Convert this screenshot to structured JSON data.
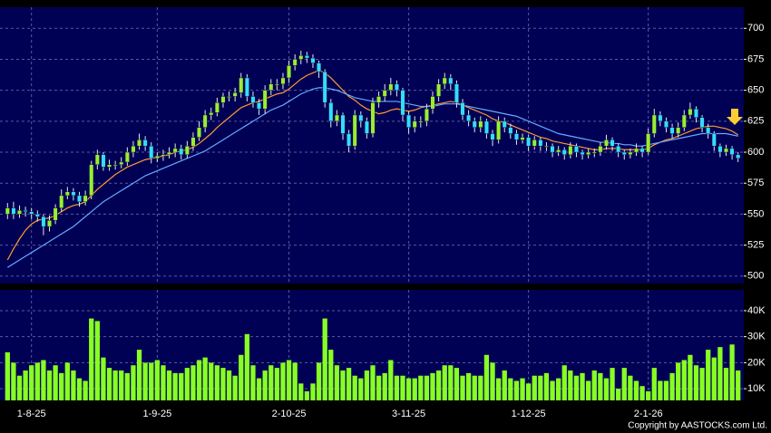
{
  "chart_data": [
    {
      "type": "candlestick",
      "xlim": [
        -0.5,
        122.5
      ],
      "ylim": [
        494,
        717
      ],
      "yticks": [
        500,
        525,
        550,
        575,
        600,
        625,
        650,
        675,
        700
      ],
      "grid": true,
      "up_color": "#99ee33",
      "down_color": "#33ddff",
      "wick_color": "#e8e8e8",
      "open": [
        550,
        555,
        550,
        553,
        552,
        550,
        548,
        540,
        545,
        555,
        565,
        568,
        565,
        560,
        565,
        590,
        598,
        588,
        590,
        590,
        592,
        600,
        605,
        610,
        605,
        595,
        597,
        598,
        600,
        603,
        598,
        605,
        612,
        620,
        630,
        632,
        640,
        645,
        645,
        648,
        660,
        645,
        640,
        635,
        650,
        655,
        655,
        660,
        670,
        675,
        678,
        676,
        672,
        665,
        640,
        625,
        630,
        615,
        605,
        630,
        625,
        615,
        640,
        645,
        650,
        655,
        650,
        630,
        620,
        625,
        625,
        635,
        645,
        655,
        660,
        655,
        640,
        630,
        625,
        620,
        625,
        615,
        610,
        625,
        620,
        615,
        610,
        612,
        605,
        610,
        605,
        605,
        600,
        602,
        598,
        605,
        600,
        598,
        600,
        600,
        605,
        610,
        605,
        600,
        598,
        600,
        603,
        600,
        615,
        630,
        625,
        620,
        615,
        620,
        630,
        635,
        628,
        620,
        615,
        605,
        600,
        603,
        598
      ],
      "high": [
        559,
        560,
        557,
        556,
        555,
        553,
        550,
        549,
        558,
        570,
        572,
        571,
        568,
        569,
        593,
        602,
        600,
        594,
        593,
        596,
        604,
        609,
        615,
        613,
        608,
        600,
        602,
        604,
        607,
        606,
        609,
        616,
        625,
        634,
        636,
        644,
        648,
        649,
        652,
        664,
        663,
        649,
        643,
        654,
        659,
        659,
        664,
        674,
        679,
        682,
        681,
        679,
        674,
        667,
        643,
        634,
        632,
        618,
        634,
        633,
        628,
        644,
        649,
        655,
        660,
        658,
        652,
        633,
        629,
        629,
        639,
        649,
        659,
        664,
        663,
        658,
        643,
        634,
        628,
        629,
        627,
        618,
        629,
        628,
        623,
        618,
        615,
        614,
        613,
        612,
        608,
        607,
        605,
        604,
        608,
        607,
        602,
        603,
        603,
        608,
        614,
        612,
        607,
        602,
        603,
        607,
        605,
        619,
        635,
        633,
        628,
        623,
        624,
        634,
        640,
        637,
        630,
        623,
        617,
        607,
        606,
        605,
        600
      ],
      "low": [
        546,
        546,
        547,
        548,
        546,
        544,
        533,
        536,
        542,
        552,
        562,
        561,
        556,
        557,
        562,
        586,
        585,
        585,
        586,
        587,
        589,
        596,
        602,
        601,
        591,
        592,
        593,
        595,
        596,
        594,
        595,
        601,
        609,
        616,
        626,
        629,
        636,
        641,
        641,
        644,
        641,
        636,
        630,
        631,
        646,
        650,
        651,
        656,
        666,
        671,
        672,
        668,
        660,
        636,
        620,
        621,
        610,
        600,
        602,
        620,
        611,
        612,
        636,
        641,
        646,
        645,
        625,
        615,
        616,
        620,
        621,
        631,
        641,
        651,
        650,
        636,
        626,
        621,
        616,
        616,
        611,
        605,
        607,
        616,
        611,
        606,
        607,
        601,
        602,
        601,
        601,
        596,
        597,
        594,
        595,
        596,
        594,
        595,
        596,
        597,
        602,
        601,
        596,
        594,
        595,
        597,
        596,
        598,
        612,
        621,
        616,
        611,
        612,
        617,
        627,
        624,
        616,
        611,
        601,
        596,
        597,
        594,
        592
      ],
      "close": [
        555,
        550,
        553,
        552,
        550,
        548,
        540,
        545,
        555,
        565,
        568,
        565,
        560,
        565,
        590,
        598,
        588,
        590,
        590,
        592,
        600,
        605,
        610,
        605,
        595,
        597,
        598,
        600,
        603,
        598,
        605,
        612,
        620,
        630,
        632,
        640,
        645,
        645,
        648,
        660,
        645,
        640,
        635,
        650,
        655,
        655,
        660,
        670,
        675,
        678,
        676,
        672,
        665,
        640,
        625,
        630,
        615,
        605,
        630,
        625,
        615,
        640,
        645,
        650,
        655,
        650,
        630,
        620,
        625,
        625,
        635,
        645,
        655,
        660,
        655,
        640,
        630,
        625,
        620,
        625,
        615,
        610,
        625,
        620,
        615,
        610,
        612,
        605,
        610,
        605,
        605,
        600,
        602,
        598,
        605,
        600,
        598,
        600,
        600,
        605,
        610,
        605,
        600,
        598,
        600,
        603,
        600,
        615,
        630,
        625,
        620,
        615,
        620,
        630,
        635,
        628,
        620,
        615,
        605,
        600,
        603,
        598,
        595
      ],
      "lines": [
        {
          "color": "#ff9933",
          "values": [
            513,
            522,
            530,
            537,
            542,
            545,
            546,
            547,
            549,
            552,
            555,
            557,
            558,
            560,
            565,
            570,
            574,
            578,
            582,
            585,
            588,
            590,
            592,
            594,
            595,
            596,
            597,
            598,
            600,
            601,
            602,
            604,
            607,
            611,
            615,
            620,
            624,
            628,
            632,
            636,
            638,
            640,
            641,
            643,
            645,
            647,
            648,
            651,
            655,
            659,
            662,
            664,
            666,
            664,
            660,
            655,
            650,
            645,
            642,
            638,
            635,
            633,
            631,
            632,
            634,
            635,
            634,
            633,
            634,
            636,
            637,
            638,
            639,
            640,
            641,
            640,
            638,
            636,
            634,
            632,
            630,
            627,
            625,
            624,
            622,
            620,
            618,
            616,
            614,
            612,
            611,
            609,
            608,
            607,
            606,
            605,
            604,
            603,
            602,
            602,
            603,
            603,
            603,
            602,
            602,
            602,
            602,
            603,
            606,
            608,
            610,
            611,
            613,
            615,
            617,
            619,
            620,
            621,
            621,
            620,
            619,
            617,
            614
          ]
        },
        {
          "color": "#66aaff",
          "values": [
            507,
            510,
            513,
            516,
            519,
            522,
            525,
            528,
            531,
            534,
            537,
            540,
            544,
            548,
            552,
            556,
            560,
            563,
            566,
            569,
            572,
            575,
            578,
            581,
            583,
            585,
            587,
            589,
            591,
            593,
            595,
            597,
            599,
            601,
            604,
            607,
            610,
            613,
            616,
            619,
            622,
            625,
            628,
            631,
            634,
            636,
            638,
            641,
            644,
            647,
            649,
            651,
            652,
            652,
            651,
            650,
            648,
            646,
            644,
            643,
            642,
            641,
            641,
            641,
            641,
            641,
            640,
            639,
            638,
            637,
            637,
            637,
            638,
            639,
            639,
            639,
            638,
            637,
            636,
            635,
            634,
            633,
            632,
            631,
            630,
            629,
            627,
            625,
            623,
            621,
            619,
            617,
            615,
            614,
            613,
            612,
            611,
            610,
            609,
            608,
            608,
            607,
            607,
            606,
            606,
            605,
            605,
            606,
            607,
            608,
            609,
            610,
            611,
            612,
            613,
            614,
            615,
            615,
            615,
            615,
            615,
            614,
            613
          ]
        }
      ]
    },
    {
      "type": "bar",
      "xlim": [
        -0.5,
        122.5
      ],
      "ylim": [
        5500,
        48000
      ],
      "color": "#88ff22",
      "grid": true,
      "yticks": [
        {
          "value": 10000,
          "label": "10K"
        },
        {
          "value": 20000,
          "label": "20K"
        },
        {
          "value": 30000,
          "label": "30K"
        },
        {
          "value": 40000,
          "label": "40K"
        }
      ],
      "xticks": [
        {
          "value": 4,
          "label": "1-8-25"
        },
        {
          "value": 25,
          "label": "1-9-25"
        },
        {
          "value": 47,
          "label": "2-10-25"
        },
        {
          "value": 67,
          "label": "3-11-25"
        },
        {
          "value": 87,
          "label": "1-12-25"
        },
        {
          "value": 107,
          "label": "2-1-26"
        }
      ],
      "values": [
        24000,
        20000,
        15000,
        17000,
        19000,
        20000,
        21000,
        17000,
        19000,
        16000,
        20000,
        17000,
        14000,
        13000,
        37000,
        36000,
        22000,
        18000,
        17000,
        17000,
        16000,
        19000,
        25000,
        20000,
        20000,
        21000,
        19000,
        17000,
        16000,
        16000,
        18000,
        19000,
        21000,
        22000,
        20000,
        19000,
        18000,
        17000,
        15000,
        23000,
        31000,
        19000,
        14000,
        17000,
        19000,
        18000,
        20000,
        21000,
        20000,
        12000,
        9000,
        12000,
        20000,
        37000,
        25000,
        19000,
        17000,
        18000,
        15000,
        14000,
        17000,
        19000,
        15000,
        16000,
        21000,
        15000,
        15000,
        14000,
        14000,
        15000,
        15000,
        16000,
        17000,
        19000,
        19000,
        18000,
        15000,
        16000,
        15000,
        15000,
        23000,
        20000,
        14000,
        17000,
        14000,
        13000,
        14000,
        12000,
        15000,
        15000,
        16000,
        13000,
        14000,
        19000,
        17000,
        15000,
        16000,
        13000,
        17000,
        16000,
        14000,
        18000,
        10000,
        18000,
        15000,
        13000,
        11000,
        9000,
        18000,
        13000,
        13000,
        16000,
        20000,
        21000,
        23000,
        19000,
        18000,
        25000,
        22000,
        26000,
        18000,
        27000,
        17000
      ],
      "credit": "Copyright by AASTOCKS.com Ltd."
    }
  ]
}
